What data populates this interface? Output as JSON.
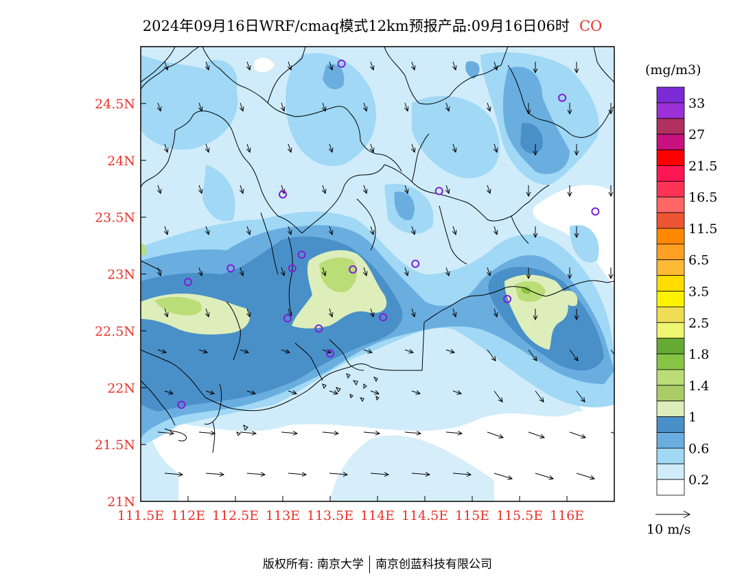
{
  "title": {
    "main": "2024年09月16日WRF/cmaq模式12km预报产品:09月16日06时",
    "species": "CO"
  },
  "axes": {
    "lat_ticks": [
      "24.5N",
      "24N",
      "23.5N",
      "23N",
      "22.5N",
      "22N",
      "21.5N",
      "21N"
    ],
    "lon_ticks": [
      "111.5E",
      "112E",
      "112.5E",
      "113E",
      "113.5E",
      "114E",
      "114.5E",
      "115E",
      "115.5E",
      "116E"
    ],
    "lat_range": [
      21.0,
      25.0
    ],
    "lon_range": [
      111.5,
      116.5
    ]
  },
  "legend": {
    "unit": "(mg/m3)",
    "labels": [
      "33",
      "27",
      "21.5",
      "16.5",
      "11.5",
      "6.5",
      "3.5",
      "2.5",
      "1.8",
      "1.4",
      "1",
      "0.6",
      "0.2"
    ],
    "colors": [
      "#7b2bd6",
      "#9b30d9",
      "#b03060",
      "#c8107e",
      "#ff0000",
      "#ff1654",
      "#ff3355",
      "#ff6666",
      "#ee5533",
      "#ff8800",
      "#ffa022",
      "#ffbb33",
      "#ffdd00",
      "#fff200",
      "#eedd55",
      "#eef570",
      "#66aa33",
      "#88c444",
      "#bbdd77",
      "#aacc66",
      "#ddeebb",
      "#4a90c8",
      "#6aaee0",
      "#a0d8f5",
      "#d0ecfa",
      "#ffffff"
    ]
  },
  "wind_key": {
    "label": "10 m/s"
  },
  "footer": {
    "left": "版权所有: 南京大学",
    "right": "南京创蓝科技有限公司"
  },
  "stations": [
    {
      "lon": 113.62,
      "lat": 24.85
    },
    {
      "lon": 115.95,
      "lat": 24.55
    },
    {
      "lon": 113.0,
      "lat": 23.7
    },
    {
      "lon": 114.65,
      "lat": 23.73
    },
    {
      "lon": 116.3,
      "lat": 23.55
    },
    {
      "lon": 113.2,
      "lat": 23.17
    },
    {
      "lon": 113.1,
      "lat": 23.05
    },
    {
      "lon": 112.45,
      "lat": 23.05
    },
    {
      "lon": 113.74,
      "lat": 23.04
    },
    {
      "lon": 114.4,
      "lat": 23.09
    },
    {
      "lon": 112.0,
      "lat": 22.93
    },
    {
      "lon": 115.37,
      "lat": 22.78
    },
    {
      "lon": 113.05,
      "lat": 22.61
    },
    {
      "lon": 114.06,
      "lat": 22.62
    },
    {
      "lon": 113.38,
      "lat": 22.52
    },
    {
      "lon": 113.5,
      "lat": 22.3
    },
    {
      "lon": 111.93,
      "lat": 21.85
    }
  ],
  "colors": {
    "frame": "#000000",
    "border_lines": "#000000",
    "tick_text": "#e8332a"
  }
}
